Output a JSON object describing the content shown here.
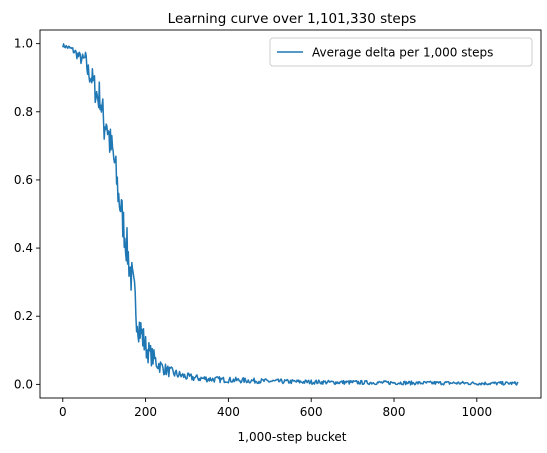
{
  "chart_data": {
    "type": "line",
    "title": "Learning curve over 1,101,330 steps",
    "xlabel": "1,000-step bucket",
    "ylabel": "",
    "xlim": [
      -55,
      1155
    ],
    "ylim": [
      -0.04,
      1.04
    ],
    "xticks": [
      0,
      200,
      400,
      600,
      800,
      1000
    ],
    "yticks": [
      0.0,
      0.2,
      0.4,
      0.6,
      0.8,
      1.0
    ],
    "xtick_labels": [
      "0",
      "200",
      "400",
      "600",
      "800",
      "1000"
    ],
    "ytick_labels": [
      "0.0",
      "0.2",
      "0.4",
      "0.6",
      "0.8",
      "1.0"
    ],
    "grid": false,
    "legend_position": "top-right",
    "series": [
      {
        "name": "Average delta per 1,000 steps",
        "color": "#1f77b4",
        "x": [
          0,
          10,
          20,
          30,
          40,
          50,
          55,
          60,
          65,
          70,
          75,
          80,
          85,
          90,
          95,
          100,
          105,
          110,
          115,
          120,
          125,
          130,
          135,
          140,
          145,
          150,
          155,
          160,
          165,
          170,
          175,
          180,
          185,
          190,
          195,
          200,
          210,
          220,
          230,
          240,
          250,
          260,
          270,
          280,
          290,
          300,
          320,
          340,
          360,
          380,
          400,
          450,
          500,
          550,
          600,
          650,
          700,
          750,
          800,
          850,
          900,
          950,
          1000,
          1050,
          1100
        ],
        "y": [
          0.995,
          0.99,
          0.985,
          0.975,
          0.96,
          0.95,
          0.96,
          0.92,
          0.91,
          0.9,
          0.88,
          0.86,
          0.84,
          0.85,
          0.8,
          0.76,
          0.78,
          0.74,
          0.7,
          0.68,
          0.65,
          0.6,
          0.55,
          0.52,
          0.48,
          0.44,
          0.4,
          0.36,
          0.32,
          0.28,
          0.24,
          0.2,
          0.17,
          0.15,
          0.13,
          0.11,
          0.09,
          0.075,
          0.06,
          0.05,
          0.042,
          0.036,
          0.032,
          0.028,
          0.025,
          0.022,
          0.019,
          0.017,
          0.015,
          0.014,
          0.013,
          0.011,
          0.009,
          0.008,
          0.007,
          0.006,
          0.006,
          0.005,
          0.005,
          0.004,
          0.004,
          0.004,
          0.003,
          0.003,
          0.003
        ]
      }
    ]
  }
}
